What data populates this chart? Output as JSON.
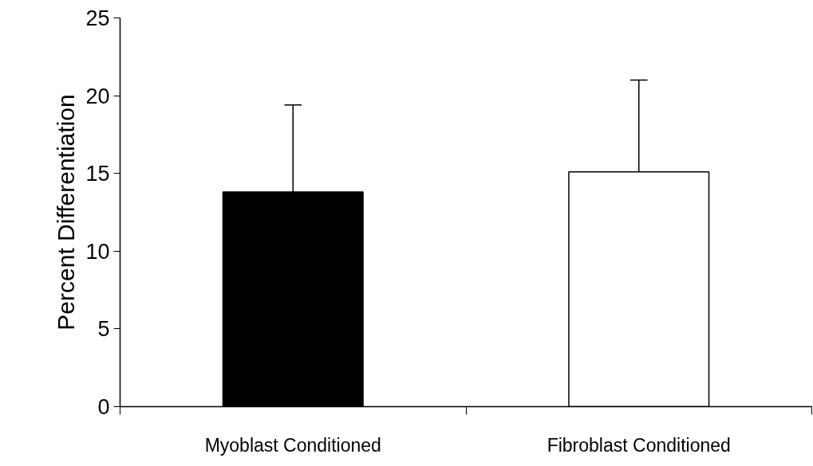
{
  "chart_data": {
    "type": "bar",
    "ylabel": "Percent Differentiation",
    "categories": [
      "Myoblast Conditioned",
      "Fibroblast Conditioned"
    ],
    "values": [
      13.8,
      15.1
    ],
    "colors": [
      "#000000",
      "#ffffff"
    ],
    "errors": [
      [
        13.8,
        19.4
      ],
      [
        15.1,
        21.0
      ]
    ],
    "ylim": [
      0,
      25
    ],
    "yticks": [
      0,
      5,
      10,
      15,
      20,
      25
    ],
    "grid": false
  }
}
